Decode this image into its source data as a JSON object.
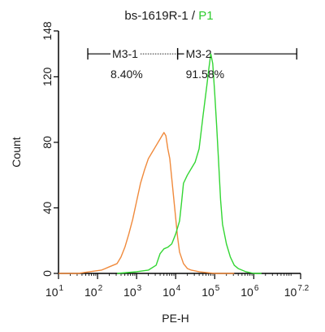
{
  "chart_data": {
    "type": "line",
    "title": {
      "sample": "bs-1619R-1",
      "separator": " / ",
      "gate": "P1",
      "gate_color": "#2ecc2e"
    },
    "xlabel": "PE-H",
    "ylabel": "Count",
    "xscale": "log",
    "xlim": [
      10,
      15848932
    ],
    "ylim": [
      0,
      148
    ],
    "x_ticks": [
      {
        "base": "10",
        "exp": "1"
      },
      {
        "base": "10",
        "exp": "2"
      },
      {
        "base": "10",
        "exp": "3"
      },
      {
        "base": "10",
        "exp": "4"
      },
      {
        "base": "10",
        "exp": "5"
      },
      {
        "base": "10",
        "exp": "6"
      },
      {
        "base": "10",
        "exp": "7.2"
      }
    ],
    "y_ticks": [
      {
        "label": "0",
        "value": 0
      },
      {
        "label": "40",
        "value": 40
      },
      {
        "label": "80",
        "value": 80
      },
      {
        "label": "120",
        "value": 120
      },
      {
        "label": "148",
        "value": 148
      }
    ],
    "grid": false,
    "series": [
      {
        "color": "#f08a3c",
        "points": [
          [
            1.0,
            0
          ],
          [
            1.5,
            0
          ],
          [
            1.8,
            1
          ],
          [
            2.1,
            2
          ],
          [
            2.3,
            4
          ],
          [
            2.5,
            6
          ],
          [
            2.6,
            10
          ],
          [
            2.7,
            16
          ],
          [
            2.8,
            24
          ],
          [
            2.9,
            33
          ],
          [
            3.0,
            44
          ],
          [
            3.1,
            55
          ],
          [
            3.2,
            63
          ],
          [
            3.3,
            70
          ],
          [
            3.4,
            74
          ],
          [
            3.5,
            78
          ],
          [
            3.6,
            82
          ],
          [
            3.7,
            86
          ],
          [
            3.75,
            84
          ],
          [
            3.8,
            76
          ],
          [
            3.85,
            70
          ],
          [
            3.9,
            58
          ],
          [
            3.95,
            46
          ],
          [
            4.0,
            34
          ],
          [
            4.05,
            22
          ],
          [
            4.1,
            13
          ],
          [
            4.2,
            6
          ],
          [
            4.3,
            3
          ],
          [
            4.4,
            2
          ],
          [
            4.6,
            1
          ],
          [
            5.0,
            0
          ],
          [
            5.5,
            0
          ]
        ]
      },
      {
        "color": "#33d633",
        "points": [
          [
            2.5,
            0
          ],
          [
            3.0,
            1
          ],
          [
            3.3,
            2
          ],
          [
            3.5,
            5
          ],
          [
            3.6,
            12
          ],
          [
            3.7,
            15
          ],
          [
            3.8,
            16
          ],
          [
            3.9,
            18
          ],
          [
            4.0,
            24
          ],
          [
            4.1,
            32
          ],
          [
            4.15,
            43
          ],
          [
            4.2,
            55
          ],
          [
            4.3,
            60
          ],
          [
            4.4,
            64
          ],
          [
            4.5,
            68
          ],
          [
            4.6,
            76
          ],
          [
            4.7,
            96
          ],
          [
            4.8,
            115
          ],
          [
            4.85,
            125
          ],
          [
            4.9,
            134
          ],
          [
            4.95,
            128
          ],
          [
            5.0,
            110
          ],
          [
            5.05,
            90
          ],
          [
            5.1,
            68
          ],
          [
            5.15,
            45
          ],
          [
            5.2,
            30
          ],
          [
            5.3,
            18
          ],
          [
            5.4,
            10
          ],
          [
            5.5,
            5
          ],
          [
            5.6,
            3
          ],
          [
            5.8,
            1
          ],
          [
            6.0,
            0
          ],
          [
            6.2,
            0
          ]
        ]
      }
    ],
    "gates": [
      {
        "name": "M3-1",
        "percent": "8.40%",
        "x_start": 1.75,
        "x_end": 4.05,
        "y": 134,
        "line_style": "dotted-middle"
      },
      {
        "name": "M3-2",
        "percent": "91.58%",
        "x_start": 4.05,
        "x_end": 7.1,
        "y": 134,
        "line_style": "solid"
      }
    ]
  }
}
